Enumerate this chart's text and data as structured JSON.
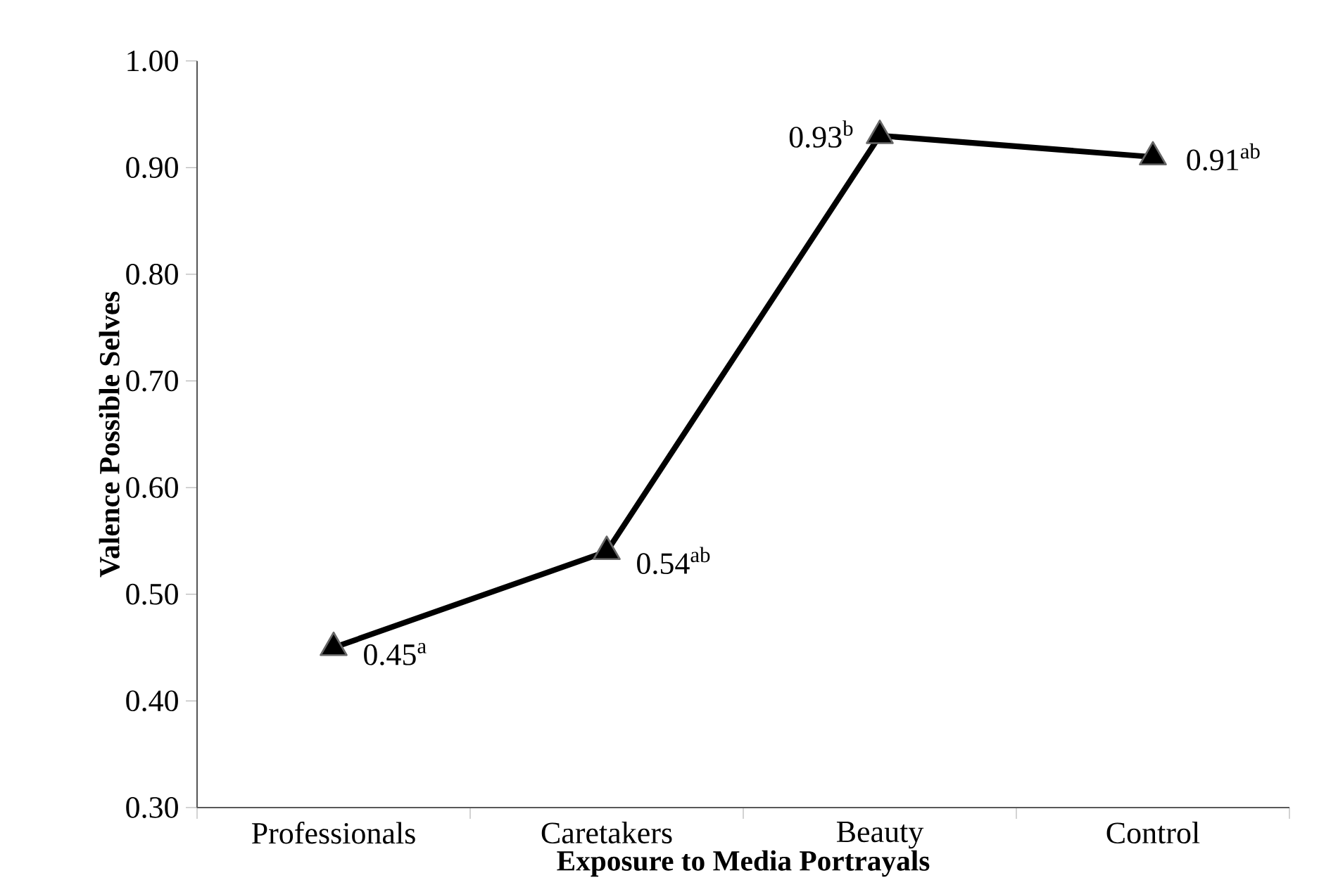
{
  "chart_data": {
    "type": "line",
    "xlabel": "Exposure to Media Portrayals",
    "ylabel": "Valence Possible Selves",
    "categories": [
      "Professionals",
      "Caretakers",
      "Beauty",
      "Control"
    ],
    "values": [
      0.45,
      0.54,
      0.93,
      0.91
    ],
    "value_labels": [
      "0.45$^{a}$",
      "0.54$^{ab}$",
      "0.93$^{b}$",
      "0.91$^{ab}$"
    ],
    "color": "#000000",
    "marker": "triangle",
    "line_style": "solid",
    "grid": false,
    "ylim": [
      0.3,
      1.0
    ],
    "yticks": [
      {
        "value": 0.3,
        "label": "0.30"
      },
      {
        "value": 0.4,
        "label": "0.40"
      },
      {
        "value": 0.5,
        "label": "0.50"
      },
      {
        "value": 0.6,
        "label": "0.60"
      },
      {
        "value": 0.7,
        "label": "0.70"
      },
      {
        "value": 0.8,
        "label": "0.80"
      },
      {
        "value": 0.9,
        "label": "0.90"
      },
      {
        "value": 1.0,
        "label": "1.00"
      }
    ]
  }
}
